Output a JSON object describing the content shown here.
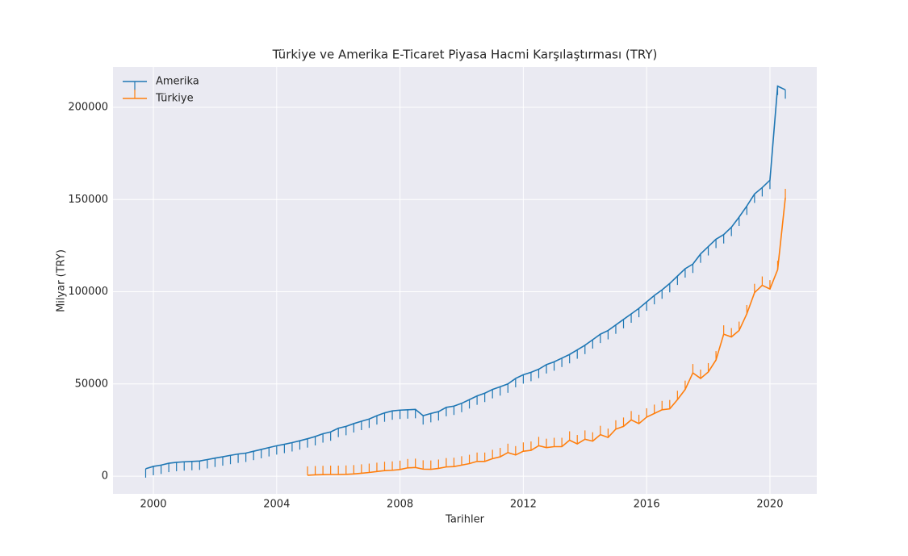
{
  "chart_data": {
    "type": "line",
    "title": "Türkiye ve Amerika E-Ticaret Piyasa Hacmi Karşılaştırması (TRY)",
    "xlabel": "Tarihler",
    "ylabel": "Milyar (TRY)",
    "xlim": [
      1998.69,
      2021.52
    ],
    "ylim": [
      -9600,
      221900
    ],
    "xticks": [
      2000,
      2004,
      2008,
      2012,
      2016,
      2020
    ],
    "yticks": [
      0,
      50000,
      100000,
      150000,
      200000
    ],
    "grid": true,
    "legend": "upper left",
    "series": [
      {
        "name": "Amerika",
        "color": "#1f77b4",
        "marker": "tickdown",
        "x": [
          1999.75,
          2000,
          2000.25,
          2000.5,
          2000.75,
          2001,
          2001.25,
          2001.5,
          2001.75,
          2002,
          2002.25,
          2002.5,
          2002.75,
          2003,
          2003.25,
          2003.5,
          2003.75,
          2004,
          2004.25,
          2004.5,
          2004.75,
          2005,
          2005.25,
          2005.5,
          2005.75,
          2006,
          2006.25,
          2006.5,
          2006.75,
          2007,
          2007.25,
          2007.5,
          2007.75,
          2008,
          2008.25,
          2008.5,
          2008.75,
          2009,
          2009.25,
          2009.5,
          2009.75,
          2010,
          2010.25,
          2010.5,
          2010.75,
          2011,
          2011.25,
          2011.5,
          2011.75,
          2012,
          2012.25,
          2012.5,
          2012.75,
          2013,
          2013.25,
          2013.5,
          2013.75,
          2014,
          2014.25,
          2014.5,
          2014.75,
          2015,
          2015.25,
          2015.5,
          2015.75,
          2016,
          2016.25,
          2016.5,
          2016.75,
          2017,
          2017.25,
          2017.5,
          2017.75,
          2018,
          2018.25,
          2018.5,
          2018.75,
          2019,
          2019.25,
          2019.5,
          2019.75,
          2020,
          2020.25,
          2020.5
        ],
        "values": [
          4000,
          5300,
          6000,
          7000,
          7500,
          7800,
          8000,
          8200,
          9000,
          9800,
          10500,
          11300,
          12000,
          12500,
          13500,
          14500,
          15500,
          16500,
          17300,
          18200,
          19200,
          20300,
          21500,
          23000,
          24000,
          26000,
          27000,
          28500,
          29800,
          31000,
          32800,
          34300,
          35400,
          35800,
          36000,
          36200,
          32800,
          34000,
          35000,
          37300,
          38000,
          39500,
          41500,
          43500,
          45000,
          47000,
          48500,
          50000,
          53000,
          55000,
          56300,
          58000,
          60500,
          62000,
          64000,
          66000,
          68500,
          71000,
          74000,
          77000,
          79000,
          82000,
          85000,
          88000,
          91000,
          94500,
          98000,
          101000,
          104500,
          108500,
          112500,
          115000,
          120500,
          124500,
          128500,
          131000,
          135000,
          140500,
          146500,
          153000,
          156500,
          160500,
          211500,
          209500
        ]
      },
      {
        "name": "Türkiye",
        "color": "#ff7f0e",
        "marker": "tickup",
        "x": [
          2005,
          2005.25,
          2005.5,
          2005.75,
          2006,
          2006.25,
          2006.5,
          2006.75,
          2007,
          2007.25,
          2007.5,
          2007.75,
          2008,
          2008.25,
          2008.5,
          2008.75,
          2009,
          2009.25,
          2009.5,
          2009.75,
          2010,
          2010.25,
          2010.5,
          2010.75,
          2011,
          2011.25,
          2011.5,
          2011.75,
          2012,
          2012.25,
          2012.5,
          2012.75,
          2013,
          2013.25,
          2013.5,
          2013.75,
          2014,
          2014.25,
          2014.5,
          2014.75,
          2015,
          2015.25,
          2015.5,
          2015.75,
          2016,
          2016.25,
          2016.5,
          2016.75,
          2017,
          2017.25,
          2017.5,
          2017.75,
          2018,
          2018.25,
          2018.5,
          2018.75,
          2019,
          2019.25,
          2019.5,
          2019.75,
          2020,
          2020.25,
          2020.5
        ],
        "values": [
          500,
          700,
          800,
          900,
          900,
          1000,
          1200,
          1600,
          2000,
          2500,
          3000,
          3200,
          3600,
          4500,
          4700,
          3800,
          3700,
          4200,
          5000,
          5200,
          6000,
          6800,
          8000,
          8000,
          9500,
          10500,
          12800,
          11500,
          13500,
          14000,
          16500,
          15500,
          16000,
          16000,
          19500,
          17500,
          20000,
          19000,
          22500,
          21000,
          25500,
          27000,
          30500,
          28500,
          32000,
          34000,
          36000,
          36500,
          41500,
          47000,
          56000,
          53000,
          56500,
          63000,
          77000,
          75500,
          79000,
          88000,
          99500,
          103500,
          101500,
          112000,
          151000
        ]
      }
    ]
  }
}
